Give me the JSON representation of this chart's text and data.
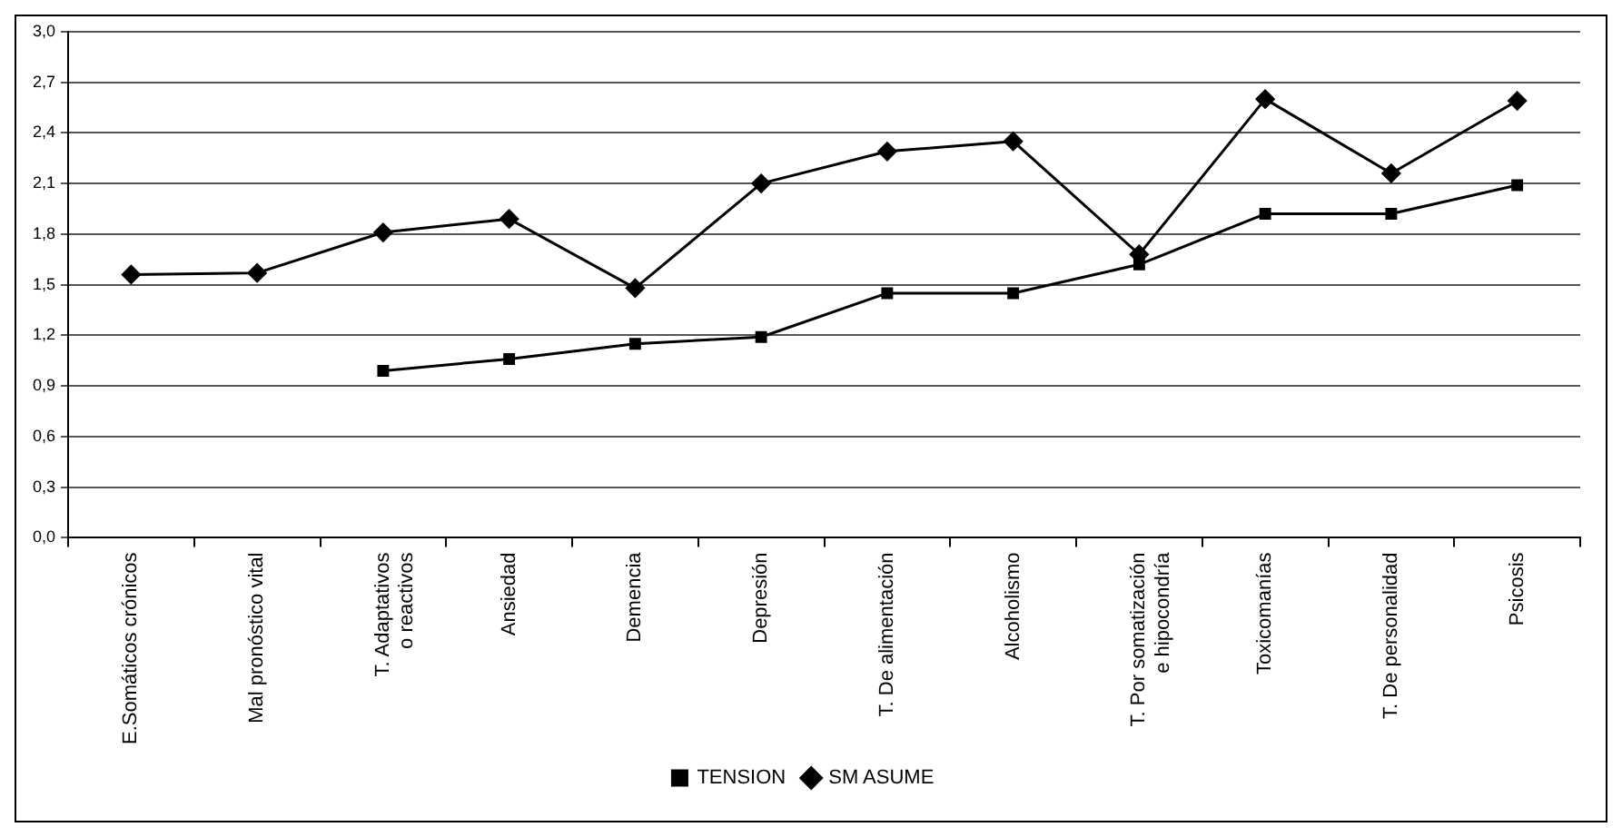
{
  "chart_data": {
    "type": "line",
    "categories": [
      "E.Somáticos crónicos",
      "Mal pronóstico vital",
      "T. Adaptativos o reactivos",
      "Ansiedad",
      "Demencia",
      "Depresión",
      "T. De alimentación",
      "Alcoholismo",
      "T. Por somatización e hipocondría",
      "Toxicomanías",
      "T. De personalidad",
      "Psicosis"
    ],
    "series": [
      {
        "name": "TENSION",
        "color": "#000000",
        "marker": "square",
        "values": [
          null,
          null,
          0.99,
          1.06,
          1.15,
          1.19,
          1.45,
          1.45,
          1.62,
          1.92,
          1.92,
          2.09
        ]
      },
      {
        "name": "SM ASUME",
        "color": "#000000",
        "marker": "diamond",
        "values": [
          1.56,
          1.57,
          1.81,
          1.89,
          1.48,
          2.1,
          2.29,
          2.35,
          1.68,
          2.6,
          2.16,
          2.59
        ]
      }
    ],
    "ylim": [
      0,
      3
    ],
    "yticks": [
      {
        "value": 0,
        "label": "0,0"
      },
      {
        "value": 0.3,
        "label": "0,3"
      },
      {
        "value": 0.6,
        "label": "0,6"
      },
      {
        "value": 0.9,
        "label": "0,9"
      },
      {
        "value": 1.2,
        "label": "1,2"
      },
      {
        "value": 1.5,
        "label": "1,5"
      },
      {
        "value": 1.8,
        "label": "1,8"
      },
      {
        "value": 2.1,
        "label": "2,1"
      },
      {
        "value": 2.4,
        "label": "2,4"
      },
      {
        "value": 2.7,
        "label": "2,7"
      },
      {
        "value": 3,
        "label": "3,0"
      }
    ],
    "grid": "y",
    "legend": "bottom",
    "line_style": "solid"
  }
}
